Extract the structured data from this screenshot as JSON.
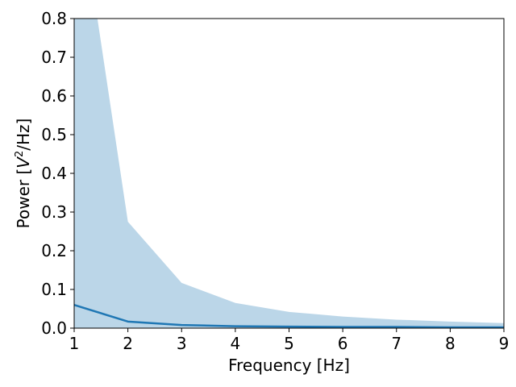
{
  "chart_data": {
    "type": "area",
    "xlabel": "Frequency [Hz]",
    "ylabel": {
      "prefix": "Power [",
      "base": "V",
      "superscript": "2",
      "suffix": "/Hz]"
    },
    "xlim": [
      1,
      9
    ],
    "ylim": [
      0,
      0.8
    ],
    "x_ticks": [
      "1",
      "2",
      "3",
      "4",
      "5",
      "6",
      "7",
      "8",
      "9"
    ],
    "y_ticks": [
      "0.0",
      "0.1",
      "0.2",
      "0.3",
      "0.4",
      "0.5",
      "0.6",
      "0.7",
      "0.8"
    ],
    "grid": false,
    "x": [
      1,
      2,
      3,
      4,
      5,
      6,
      7,
      8,
      9
    ],
    "series": [
      {
        "values": [
          0.06,
          0.017,
          0.008,
          0.005,
          0.004,
          0.003,
          0.003,
          0.002,
          0.002
        ],
        "color": "#1f77b4",
        "band_lower": [
          0,
          0,
          0,
          0,
          0,
          0,
          0,
          0,
          0
        ],
        "band_upper": [
          1.2,
          0.275,
          0.117,
          0.065,
          0.042,
          0.03,
          0.022,
          0.017,
          0.013
        ],
        "band_color": "#1f77b4",
        "band_alpha": 0.3
      }
    ]
  }
}
